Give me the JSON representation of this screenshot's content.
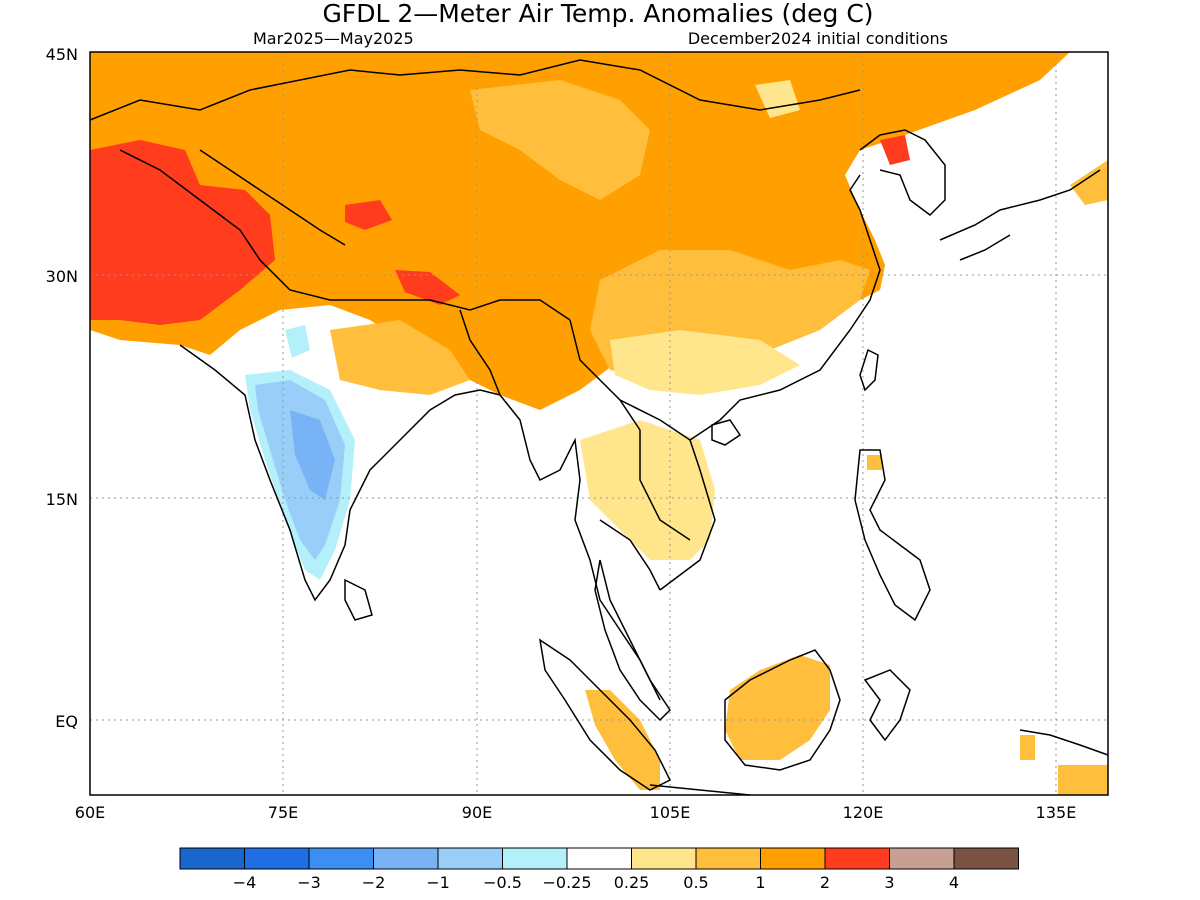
{
  "title": "GFDL 2—Meter Air Temp. Anomalies (deg C)",
  "subtitle_left": "Mar2025—May2025",
  "subtitle_right": "December2024 initial conditions",
  "lat_labels": [
    "45N",
    "30N",
    "15N",
    "EQ"
  ],
  "lon_labels": [
    "60E",
    "75E",
    "90E",
    "105E",
    "120E",
    "135E"
  ],
  "map": {
    "lon_range": [
      60,
      139
    ],
    "lat_range": [
      -5,
      45
    ],
    "lat_ticks": [
      45,
      30,
      15,
      0
    ],
    "lon_ticks": [
      60,
      75,
      90,
      105,
      120,
      135
    ],
    "gridlines": "dotted"
  },
  "legend": {
    "labels": [
      "−4",
      "−3",
      "−2",
      "−1",
      "−0.5",
      "−0.25",
      "0.25",
      "0.5",
      "1",
      "2",
      "3",
      "4"
    ],
    "colors": [
      "#1966cd",
      "#1f6ee6",
      "#3a8ff0",
      "#78b4f5",
      "#99cef8",
      "#b4f0fa",
      "#ffffff",
      "#ffe68c",
      "#ffbe3c",
      "#ffa000",
      "#ff3c1e",
      "#c8a093",
      "#7a5143"
    ]
  }
}
